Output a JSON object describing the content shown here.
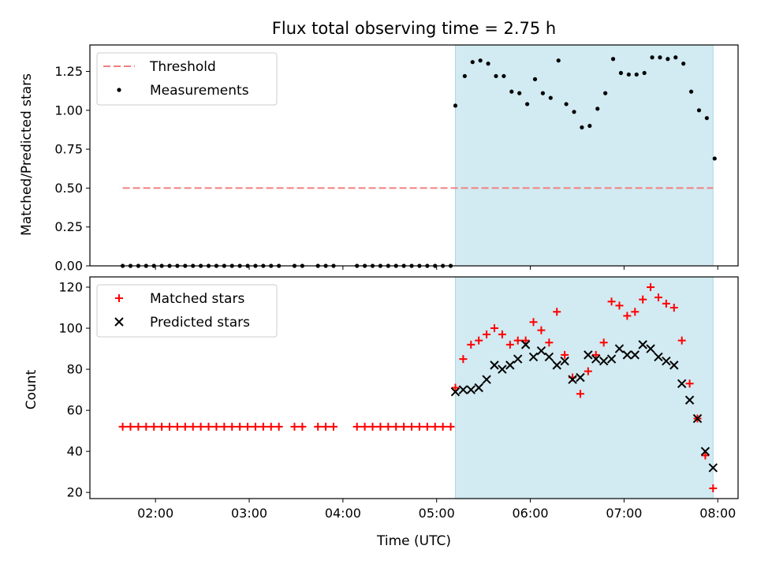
{
  "chart_data": [
    {
      "type": "scatter",
      "panel": "top",
      "title": "Flux total observing time = 2.75 h",
      "xlabel": "",
      "ylabel": "Matched/Predicted stars",
      "xlim": [
        "01:18",
        "08:13"
      ],
      "ylim": [
        0,
        1.42
      ],
      "yticks": [
        0.0,
        0.25,
        0.5,
        0.75,
        1.0,
        1.25
      ],
      "ytick_labels": [
        "0.00",
        "0.25",
        "0.50",
        "0.75",
        "1.00",
        "1.25"
      ],
      "grid": false,
      "legend_position": "top-left",
      "shaded_interval": {
        "start": "05:12",
        "end": "07:57",
        "color": "#add8e6"
      },
      "series": [
        {
          "name": "Threshold",
          "style": "dashed-line",
          "color": "#f08080",
          "x": [
            "01:39",
            "07:57"
          ],
          "y": [
            0.5,
            0.5
          ]
        },
        {
          "name": "Measurements",
          "style": "dot",
          "color": "#000000",
          "x": [
            "01:39",
            "01:44",
            "01:49",
            "01:54",
            "01:59",
            "02:04",
            "02:09",
            "02:14",
            "02:19",
            "02:24",
            "02:29",
            "02:34",
            "02:39",
            "02:44",
            "02:49",
            "02:54",
            "02:59",
            "03:04",
            "03:09",
            "03:14",
            "03:19",
            "03:29",
            "03:34",
            "03:44",
            "03:49",
            "03:54",
            "04:09",
            "04:14",
            "04:19",
            "04:24",
            "04:29",
            "04:34",
            "04:39",
            "04:44",
            "04:49",
            "04:54",
            "04:59",
            "05:04",
            "05:09",
            "05:12",
            "05:18",
            "05:23",
            "05:28",
            "05:33",
            "05:38",
            "05:43",
            "05:48",
            "05:53",
            "05:58",
            "06:03",
            "06:08",
            "06:13",
            "06:18",
            "06:23",
            "06:28",
            "06:33",
            "06:38",
            "06:43",
            "06:48",
            "06:53",
            "06:58",
            "07:03",
            "07:08",
            "07:13",
            "07:18",
            "07:23",
            "07:28",
            "07:33",
            "07:38",
            "07:43",
            "07:48",
            "07:53",
            "07:58"
          ],
          "y": [
            0,
            0,
            0,
            0,
            0,
            0,
            0,
            0,
            0,
            0,
            0,
            0,
            0,
            0,
            0,
            0,
            0,
            0,
            0,
            0,
            0,
            0,
            0,
            0,
            0,
            0,
            0,
            0,
            0,
            0,
            0,
            0,
            0,
            0,
            0,
            0,
            0,
            0,
            0,
            1.03,
            1.22,
            1.31,
            1.32,
            1.3,
            1.22,
            1.22,
            1.12,
            1.11,
            1.04,
            1.2,
            1.11,
            1.08,
            1.32,
            1.04,
            0.99,
            0.89,
            0.9,
            1.01,
            1.11,
            1.33,
            1.24,
            1.23,
            1.23,
            1.24,
            1.34,
            1.34,
            1.33,
            1.34,
            1.3,
            1.12,
            1.0,
            0.95,
            0.69
          ]
        }
      ]
    },
    {
      "type": "scatter",
      "panel": "bottom",
      "title": "",
      "xlabel": "Time (UTC)",
      "ylabel": "Count",
      "xlim": [
        "01:18",
        "08:13"
      ],
      "ylim": [
        17,
        125
      ],
      "xticks": [
        "02:00",
        "03:00",
        "04:00",
        "05:00",
        "06:00",
        "07:00",
        "08:00"
      ],
      "yticks": [
        20,
        40,
        60,
        80,
        100,
        120
      ],
      "grid": false,
      "legend_position": "top-left",
      "shaded_interval": {
        "start": "05:12",
        "end": "07:57",
        "color": "#add8e6"
      },
      "series": [
        {
          "name": "Matched stars",
          "style": "plus",
          "color": "#ff0000",
          "x": [
            "01:39",
            "01:44",
            "01:49",
            "01:54",
            "01:59",
            "02:04",
            "02:09",
            "02:14",
            "02:19",
            "02:24",
            "02:29",
            "02:34",
            "02:39",
            "02:44",
            "02:49",
            "02:54",
            "02:59",
            "03:04",
            "03:09",
            "03:14",
            "03:19",
            "03:29",
            "03:34",
            "03:44",
            "03:49",
            "03:54",
            "04:09",
            "04:14",
            "04:19",
            "04:24",
            "04:29",
            "04:34",
            "04:39",
            "04:44",
            "04:49",
            "04:54",
            "04:59",
            "05:04",
            "05:09",
            "05:12",
            "05:17",
            "05:22",
            "05:27",
            "05:32",
            "05:37",
            "05:42",
            "05:47",
            "05:52",
            "05:57",
            "06:02",
            "06:07",
            "06:12",
            "06:17",
            "06:22",
            "06:27",
            "06:32",
            "06:37",
            "06:42",
            "06:47",
            "06:52",
            "06:57",
            "07:02",
            "07:07",
            "07:12",
            "07:17",
            "07:22",
            "07:27",
            "07:32",
            "07:37",
            "07:42",
            "07:47",
            "07:52",
            "07:57"
          ],
          "y": [
            52,
            52,
            52,
            52,
            52,
            52,
            52,
            52,
            52,
            52,
            52,
            52,
            52,
            52,
            52,
            52,
            52,
            52,
            52,
            52,
            52,
            52,
            52,
            52,
            52,
            52,
            52,
            52,
            52,
            52,
            52,
            52,
            52,
            52,
            52,
            52,
            52,
            52,
            52,
            71,
            85,
            92,
            94,
            97,
            100,
            97,
            92,
            94,
            94,
            103,
            99,
            93,
            108,
            87,
            76,
            68,
            79,
            87,
            93,
            113,
            111,
            106,
            108,
            114,
            120,
            115,
            112,
            110,
            94,
            73,
            56,
            38,
            22
          ]
        },
        {
          "name": "Predicted stars",
          "style": "x",
          "color": "#000000",
          "x": [
            "05:12",
            "05:17",
            "05:22",
            "05:27",
            "05:32",
            "05:37",
            "05:42",
            "05:47",
            "05:52",
            "05:57",
            "06:02",
            "06:07",
            "06:12",
            "06:17",
            "06:22",
            "06:27",
            "06:32",
            "06:37",
            "06:42",
            "06:47",
            "06:52",
            "06:57",
            "07:02",
            "07:07",
            "07:12",
            "07:17",
            "07:22",
            "07:27",
            "07:32",
            "07:37",
            "07:42",
            "07:47",
            "07:52",
            "07:57"
          ],
          "y": [
            69,
            70,
            70,
            71,
            75,
            82,
            80,
            82,
            85,
            92,
            86,
            89,
            86,
            82,
            84,
            75,
            76,
            87,
            85,
            84,
            85,
            90,
            87,
            87,
            92,
            90,
            86,
            84,
            82,
            73,
            65,
            56,
            40,
            32
          ]
        }
      ]
    }
  ]
}
